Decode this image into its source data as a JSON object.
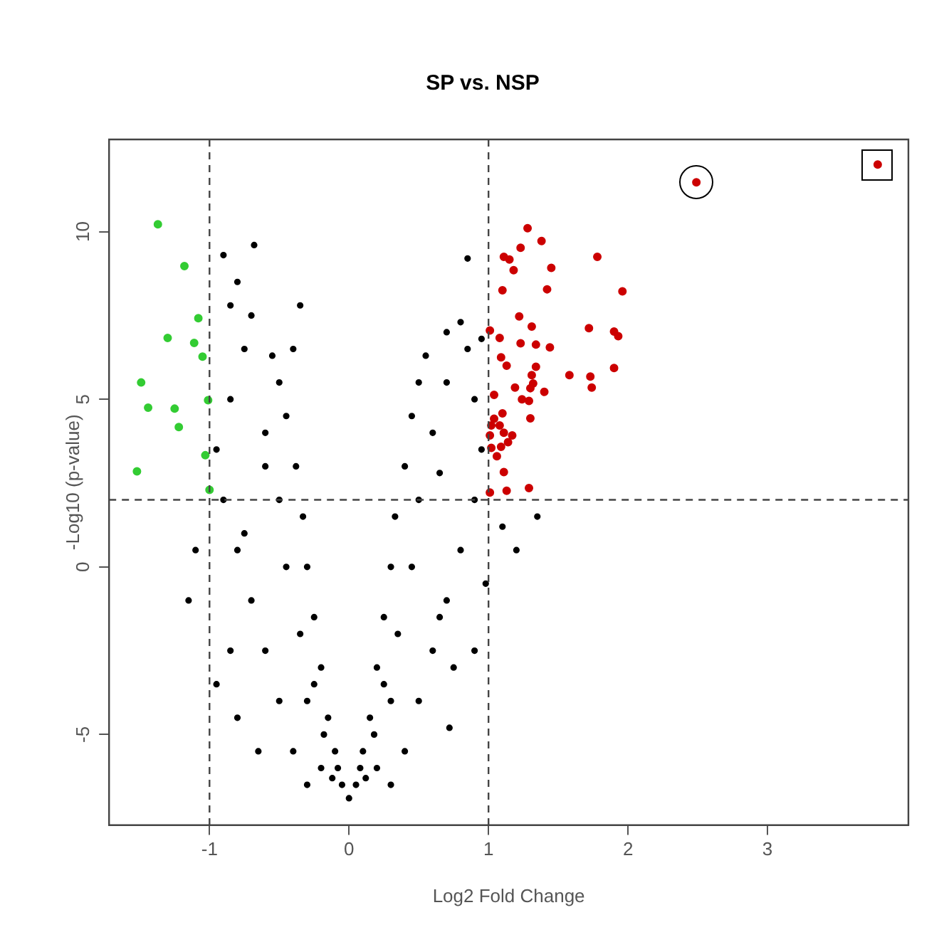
{
  "chart_data": {
    "type": "scatter",
    "title": "SP vs. NSP",
    "xlabel": "Log2 Fold Change",
    "ylabel": "-Log10 (p-value)",
    "xlim": [
      -1.72,
      4.01
    ],
    "ylim": [
      -7.7,
      12.75
    ],
    "xticks": [
      -1,
      0,
      1,
      2,
      3
    ],
    "yticks": [
      -5,
      0,
      5,
      10
    ],
    "grid": false,
    "legend": false,
    "marker": "circle",
    "ref_lines": [
      {
        "axis": "x",
        "value": -1,
        "line_style": "dashed",
        "color": "#444444"
      },
      {
        "axis": "x",
        "value": 1,
        "line_style": "dashed",
        "color": "#444444"
      },
      {
        "axis": "y",
        "value": 2,
        "line_style": "dashed",
        "color": "#444444"
      }
    ],
    "series": [
      {
        "color": "#000000",
        "x": [
          0,
          -0.05,
          -0.1,
          -0.15,
          -0.2,
          -0.25,
          -0.3,
          -0.33,
          -0.38,
          -0.45,
          -0.5,
          -0.55,
          -0.7,
          -0.8,
          -0.9,
          -0.68,
          -0.3,
          -0.4,
          -0.5,
          -0.6,
          -0.7,
          -0.8,
          -0.9,
          -0.95,
          -0.85,
          -0.75,
          -0.6,
          -0.5,
          -0.45,
          -0.35,
          -0.3,
          -0.2,
          -0.12,
          -1.15,
          -0.85,
          -0.95,
          -0.8,
          -0.65,
          -1.1,
          -0.75,
          -0.6,
          -0.4,
          -0.35,
          -0.85,
          0.05,
          0.1,
          0.15,
          0.2,
          0.25,
          0.3,
          0.33,
          0.4,
          0.45,
          0.5,
          0.55,
          0.7,
          0.8,
          0.85,
          0.3,
          0.4,
          0.5,
          0.6,
          0.7,
          0.8,
          0.9,
          0.95,
          0.9,
          0.85,
          0.6,
          0.5,
          0.45,
          0.35,
          0.3,
          0.2,
          0.12,
          1.1,
          1.2,
          0.75,
          0.72,
          0.9,
          0.65,
          0.98,
          1.35,
          0.7,
          0.95,
          0.65,
          -0.08,
          0.08,
          -0.18,
          0.18,
          -0.25,
          0.25
        ],
        "values": [
          -6.9,
          -6.5,
          -5.5,
          -4.5,
          -3,
          -1.5,
          0,
          1.5,
          3,
          4.5,
          5.5,
          6.3,
          7.5,
          8.5,
          9.3,
          9.6,
          -6.5,
          -5.5,
          -4,
          -2.5,
          -1,
          0.5,
          2,
          3.5,
          5,
          6.5,
          4,
          2,
          0,
          -2,
          -4,
          -6,
          -6.3,
          -1,
          -2.5,
          -3.5,
          -4.5,
          -5.5,
          0.5,
          1,
          3,
          6.5,
          7.8,
          7.8,
          -6.5,
          -5.5,
          -4.5,
          -3,
          -1.5,
          0,
          1.5,
          3,
          4.5,
          5.5,
          6.3,
          7,
          7.3,
          9.2,
          -6.5,
          -5.5,
          -4,
          -2.5,
          -1,
          0.5,
          2,
          3.5,
          5,
          6.5,
          4,
          2,
          0,
          -2,
          -4,
          -6,
          -6.3,
          1.2,
          0.5,
          -3,
          -4.8,
          -2.5,
          -1.5,
          -0.5,
          1.5,
          5.5,
          6.8,
          2.8,
          -6,
          -6,
          -5,
          -5,
          -3.5,
          -3.5
        ]
      },
      {
        "color": "#cc0000",
        "x": [
          2.49,
          3.79,
          1.28,
          1.38,
          1.23,
          1.11,
          1.15,
          1.78,
          1.18,
          1.45,
          1.1,
          1.42,
          1.96,
          1.22,
          1.31,
          1.72,
          1.01,
          1.9,
          1.93,
          1.08,
          1.23,
          1.34,
          1.44,
          1.09,
          1.13,
          1.9,
          1.34,
          1.31,
          1.58,
          1.73,
          1.32,
          1.3,
          1.74,
          1.19,
          1.4,
          1.04,
          1.24,
          1.29,
          1.1,
          1.04,
          1.3,
          1.02,
          1.08,
          1.11,
          1.01,
          1.17,
          1.14,
          1.09,
          1.02,
          1.06,
          1.11,
          1.29,
          1.13,
          1.01
        ],
        "values": [
          11.47,
          12.0,
          10.1,
          9.72,
          9.52,
          9.25,
          9.17,
          9.25,
          8.85,
          8.92,
          8.25,
          8.28,
          8.22,
          7.47,
          7.17,
          7.12,
          7.05,
          7.02,
          6.88,
          6.83,
          6.67,
          6.63,
          6.55,
          6.25,
          6.0,
          5.93,
          5.97,
          5.72,
          5.72,
          5.68,
          5.47,
          5.33,
          5.35,
          5.35,
          5.22,
          5.13,
          5.0,
          4.95,
          4.58,
          4.42,
          4.43,
          4.22,
          4.22,
          4.0,
          3.92,
          3.92,
          3.72,
          3.58,
          3.55,
          3.3,
          2.83,
          2.35,
          2.27,
          2.22
        ]
      },
      {
        "color": "#33cc33",
        "x": [
          -1.37,
          -1.18,
          -1.08,
          -1.3,
          -1.11,
          -1.05,
          -1.49,
          -1.01,
          -1.44,
          -1.25,
          -1.22,
          -1.03,
          -1.52,
          -1.0
        ],
        "values": [
          10.22,
          8.97,
          7.42,
          6.83,
          6.68,
          6.27,
          5.5,
          4.97,
          4.75,
          4.72,
          4.17,
          3.33,
          2.85,
          2.3
        ]
      }
    ]
  }
}
